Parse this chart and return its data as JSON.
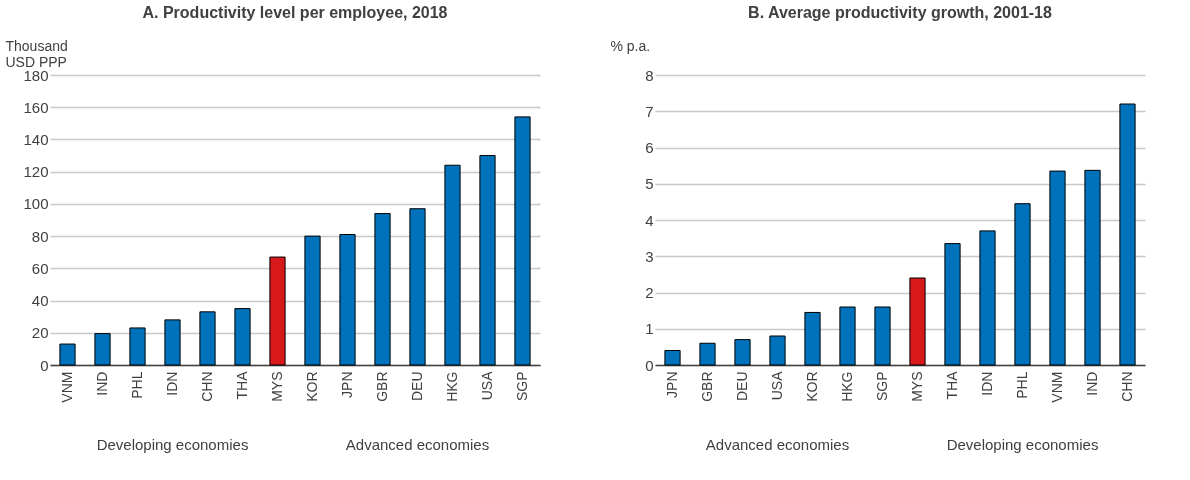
{
  "chart_data": [
    {
      "type": "bar",
      "title": "A. Productivity level per employee, 2018",
      "ylabel": "Thousand USD PPP",
      "categories": [
        "VNM",
        "IND",
        "PHL",
        "IDN",
        "CHN",
        "THA",
        "MYS",
        "KOR",
        "JPN",
        "GBR",
        "DEU",
        "HKG",
        "USA",
        "SGP"
      ],
      "values": [
        13,
        19.5,
        23,
        28,
        33,
        35,
        67,
        80,
        81,
        94,
        97,
        124,
        130,
        154
      ],
      "colors": [
        "#0072bc",
        "#0072bc",
        "#0072bc",
        "#0072bc",
        "#0072bc",
        "#0072bc",
        "#d7191c",
        "#0072bc",
        "#0072bc",
        "#0072bc",
        "#0072bc",
        "#0072bc",
        "#0072bc",
        "#0072bc"
      ],
      "ylim": [
        0,
        180
      ],
      "yticks": [
        0,
        20,
        40,
        60,
        80,
        100,
        120,
        140,
        160,
        180
      ],
      "grid": "y",
      "annotations": [
        "Developing economies",
        "Advanced economies"
      ]
    },
    {
      "type": "bar",
      "title": "B. Average productivity growth, 2001-18",
      "ylabel": "% p.a.",
      "categories": [
        "JPN",
        "GBR",
        "DEU",
        "USA",
        "KOR",
        "HKG",
        "SGP",
        "MYS",
        "THA",
        "IDN",
        "PHL",
        "VNM",
        "IND",
        "CHN"
      ],
      "values": [
        0.4,
        0.6,
        0.7,
        0.8,
        1.45,
        1.6,
        1.6,
        2.4,
        3.35,
        3.7,
        4.45,
        5.35,
        5.37,
        7.2
      ],
      "colors": [
        "#0072bc",
        "#0072bc",
        "#0072bc",
        "#0072bc",
        "#0072bc",
        "#0072bc",
        "#0072bc",
        "#d7191c",
        "#0072bc",
        "#0072bc",
        "#0072bc",
        "#0072bc",
        "#0072bc",
        "#0072bc"
      ],
      "ylim": [
        0,
        8
      ],
      "yticks": [
        0,
        1,
        2,
        3,
        4,
        5,
        6,
        7,
        8
      ],
      "grid": "y",
      "annotations": [
        "Advanced economies",
        "Developing economies"
      ]
    }
  ]
}
